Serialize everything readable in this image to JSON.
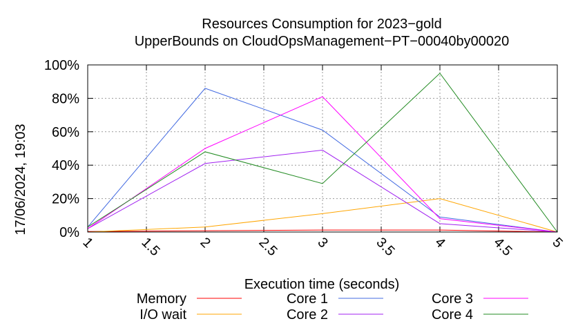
{
  "chart_data": {
    "type": "line",
    "title": "Resources Consumption for 2023−gold",
    "subtitle": "UpperBounds on CloudOpsManagement−PT−00040by00020",
    "xlabel": "Execution time (seconds)",
    "ylabel": "",
    "xlim": [
      1,
      5
    ],
    "ylim": [
      0,
      100
    ],
    "x_ticks": [
      "1",
      "1.5",
      "2",
      "2.5",
      "3",
      "3.5",
      "4",
      "4.5",
      "5"
    ],
    "y_ticks": [
      "0%",
      "20%",
      "40%",
      "60%",
      "80%",
      "100%"
    ],
    "grid": true,
    "legend_position": "bottom",
    "timestamp": "17/06/2024, 19:03",
    "x": [
      1,
      2,
      3,
      4,
      5
    ],
    "series": [
      {
        "name": "Memory",
        "color": "#ff0000",
        "values": [
          0.3,
          0.8,
          1.2,
          1.2,
          0
        ]
      },
      {
        "name": "I/O wait",
        "color": "#ffa500",
        "values": [
          0,
          3,
          11,
          20,
          0
        ]
      },
      {
        "name": "Core 1",
        "color": "#4169e1",
        "values": [
          3,
          86,
          61,
          9,
          0
        ]
      },
      {
        "name": "Core 2",
        "color": "#a020f0",
        "values": [
          2,
          41,
          49,
          5,
          0
        ]
      },
      {
        "name": "Core 3",
        "color": "#ff00ff",
        "values": [
          2,
          50,
          81,
          8,
          0
        ]
      },
      {
        "name": "Core 4",
        "color": "#228b22",
        "values": [
          3,
          48,
          29,
          95,
          0
        ]
      }
    ]
  }
}
